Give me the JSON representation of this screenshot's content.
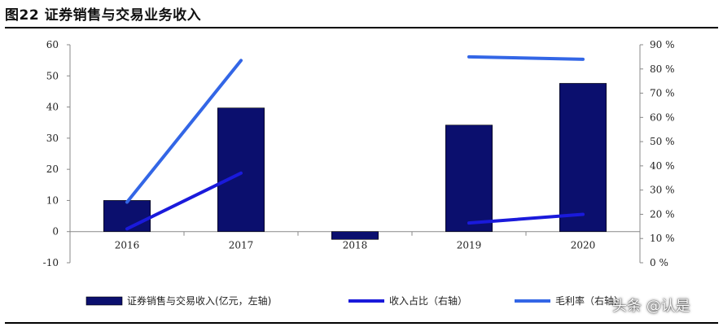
{
  "title": "图22 证券销售与交易业务收入",
  "watermark": "头条 @认是",
  "colors": {
    "bar": "#0b0f6e",
    "line_share": "#1a1adb",
    "line_margin": "#3366e6",
    "axis": "#888888"
  },
  "chart_data": {
    "type": "bar",
    "categories": [
      "2016",
      "2017",
      "2018",
      "2019",
      "2020"
    ],
    "series": [
      {
        "name": "证券销售与交易收入(亿元，左轴)",
        "type": "bar",
        "axis": "left",
        "values": [
          10,
          39.7,
          -2.5,
          34.2,
          47.6
        ]
      },
      {
        "name": "收入占比（右轴）",
        "type": "line",
        "axis": "right",
        "values": [
          0.14,
          0.37,
          null,
          0.164,
          0.2
        ]
      },
      {
        "name": "毛利率（右轴）",
        "type": "line",
        "axis": "right",
        "values": [
          0.25,
          0.835,
          null,
          0.85,
          0.84
        ]
      }
    ],
    "y_left": {
      "lim": [
        -10,
        60
      ],
      "ticks": [
        "-10",
        "0",
        "10",
        "20",
        "30",
        "40",
        "50",
        "60"
      ]
    },
    "y_right": {
      "lim": [
        0,
        0.9
      ],
      "ticks": [
        "0 %",
        "10 %",
        "20 %",
        "30 %",
        "40 %",
        "50 %",
        "60 %",
        "70 %",
        "80 %",
        "90 %"
      ]
    },
    "legend_position": "bottom",
    "grid": false
  }
}
